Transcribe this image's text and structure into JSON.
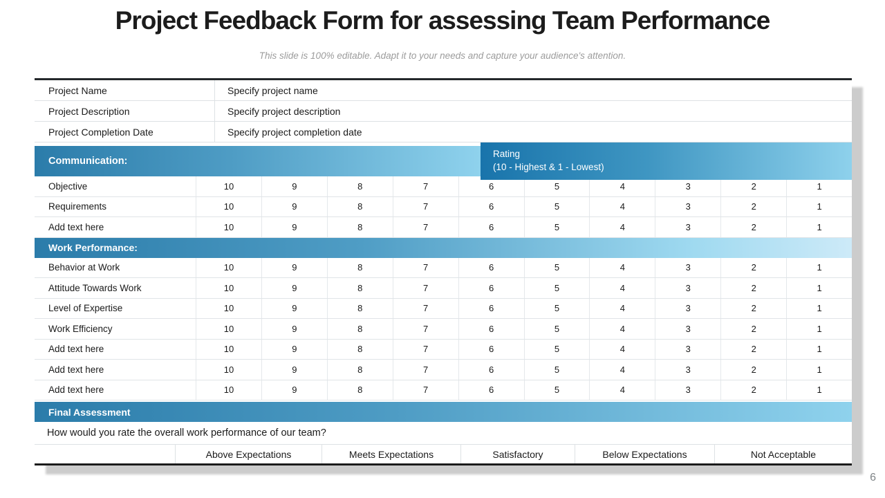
{
  "slide": {
    "title": "Project Feedback Form for assessing Team Performance",
    "subtitle": "This slide is 100% editable. Adapt it to your needs and capture your audience's attention.",
    "page_number": "6"
  },
  "project_info": {
    "rows": [
      {
        "label": "Project Name",
        "value": "Specify project name"
      },
      {
        "label": "Project Description",
        "value": "Specify project description"
      },
      {
        "label": "Project Completion Date",
        "value": "Specify project completion date"
      }
    ]
  },
  "rating_scale": [
    "10",
    "9",
    "8",
    "7",
    "6",
    "5",
    "4",
    "3",
    "2",
    "1"
  ],
  "sections": [
    {
      "header": "Communication:",
      "rating_header": "Rating",
      "rating_subheader": "(10 - Highest & 1 - Lowest)",
      "rows": [
        "Objective",
        "Requirements",
        "Add text here"
      ]
    },
    {
      "header": "Work Performance:",
      "rows": [
        "Behavior at Work",
        "Attitude Towards Work",
        "Level of Expertise",
        "Work Efficiency",
        "Add text here",
        "Add text here",
        "Add text here"
      ]
    }
  ],
  "final_assessment": {
    "header": "Final Assessment",
    "question": "How would you rate the overall work performance of our team?",
    "options": [
      "Above Expectations",
      "Meets Expectations",
      "Satisfactory",
      "Below Expectations",
      "Not Acceptable"
    ]
  },
  "colors": {
    "header_gradient_start": "#2b7caa",
    "header_gradient_end": "#8fd2ed",
    "rating_gradient_start": "#1974ab",
    "rating_gradient_end": "#8ed1ec",
    "table_top_border": "#24282b",
    "table_bottom_border": "#1b1b1b",
    "row_divider": "#dde1e4",
    "title_text": "#1c1c1c",
    "subtitle_text": "#9c9c9c",
    "header_text": "#ffffff"
  }
}
